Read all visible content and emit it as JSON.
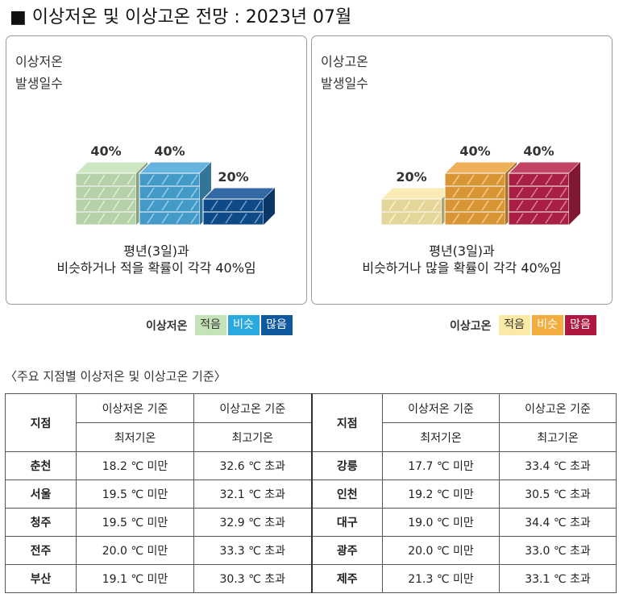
{
  "page_title": "■ 이상저온 및 이상고온 전망 : 2023년 07월",
  "panels": {
    "cold": {
      "label_line1": "이상저온",
      "label_line2": "발생일수",
      "pcts": [
        "40%",
        "40%",
        "20%"
      ],
      "values": [
        40,
        40,
        20
      ],
      "caption_line1": "평년(3일)과",
      "caption_line2": "비슷하거나 적을 확률이 각각 40%임",
      "colors": [
        "#c5e3b8",
        "#4aa7d8",
        "#0f4f94"
      ]
    },
    "hot": {
      "label_line1": "이상고온",
      "label_line2": "발생일수",
      "pcts": [
        "20%",
        "40%",
        "40%"
      ],
      "values": [
        20,
        40,
        40
      ],
      "caption_line1": "평년(3일)과",
      "caption_line2": "비슷하거나 많을 확률이 각각 40%임",
      "colors": [
        "#f8e7a5",
        "#eba23a",
        "#b82249"
      ]
    }
  },
  "legend": {
    "cold": {
      "title": "이상저온",
      "items": [
        "적음",
        "비슷",
        "많음"
      ],
      "colors": [
        "#c5e3b8",
        "#2aa9de",
        "#0f5a9e"
      ]
    },
    "hot": {
      "title": "이상고온",
      "items": [
        "적음",
        "비슷",
        "많음"
      ],
      "colors": [
        "#fbe9a6",
        "#f3ad3e",
        "#b0173f"
      ]
    }
  },
  "table": {
    "caption": "〈주요 지점별 이상저온 및 이상고온 기준〉",
    "header": {
      "station": "지점",
      "cold_group": "이상저온 기준",
      "hot_group": "이상고온 기준",
      "cold_sub": "최저기온",
      "hot_sub": "최고기온"
    },
    "rows": [
      {
        "left": [
          "춘천",
          "18.2 ℃ 미만",
          "32.6 ℃ 초과"
        ],
        "right": [
          "강릉",
          "17.7 ℃ 미만",
          "33.4 ℃ 초과"
        ]
      },
      {
        "left": [
          "서울",
          "19.5 ℃ 미만",
          "32.1 ℃ 초과"
        ],
        "right": [
          "인천",
          "19.2 ℃ 미만",
          "30.5 ℃ 초과"
        ]
      },
      {
        "left": [
          "청주",
          "19.5 ℃ 미만",
          "32.9 ℃ 초과"
        ],
        "right": [
          "대구",
          "19.0 ℃ 미만",
          "34.4 ℃ 초과"
        ]
      },
      {
        "left": [
          "전주",
          "20.0 ℃ 미만",
          "33.3 ℃ 초과"
        ],
        "right": [
          "광주",
          "20.0 ℃ 미만",
          "33.0 ℃ 초과"
        ]
      },
      {
        "left": [
          "부산",
          "19.1 ℃ 미만",
          "30.3 ℃ 초과"
        ],
        "right": [
          "제주",
          "21.3 ℃ 미만",
          "33.1 ℃ 초과"
        ]
      }
    ]
  }
}
